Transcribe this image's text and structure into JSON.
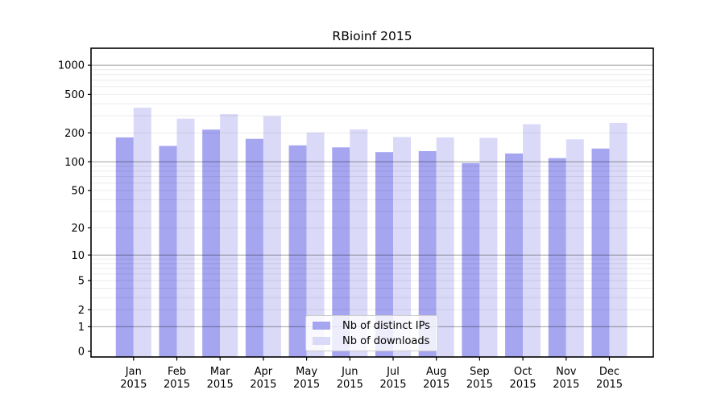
{
  "chart_data": {
    "type": "bar",
    "title": "RBioinf 2015",
    "categories": [
      "Jan 2015",
      "Feb 2015",
      "Mar 2015",
      "Apr 2015",
      "May 2015",
      "Jun 2015",
      "Jul 2015",
      "Aug 2015",
      "Sep 2015",
      "Oct 2015",
      "Nov 2015",
      "Dec 2015"
    ],
    "series": [
      {
        "name": "Nb of distinct IPs",
        "color": "#a5a5f0",
        "values": [
          179,
          146,
          216,
          173,
          148,
          141,
          126,
          129,
          97,
          122,
          109,
          137
        ]
      },
      {
        "name": "Nb of downloads",
        "color": "#dadaf8",
        "values": [
          364,
          280,
          312,
          298,
          201,
          217,
          181,
          179,
          177,
          246,
          171,
          253
        ]
      }
    ],
    "y_ticks": [
      0,
      1,
      2,
      5,
      10,
      20,
      50,
      100,
      200,
      500,
      1000
    ],
    "y_scale": "log1p",
    "ylim": [
      0,
      1500
    ],
    "xlabel": "",
    "ylabel": "",
    "grid": "decade-major + log-minor, drawn over bars",
    "legend_position": "lower-center",
    "colors": {
      "bar_ips": "#a5a5f0",
      "bar_downloads": "#dadaf8",
      "grid_decade": "rgba(0,0,0,0.38)",
      "grid_minor": "rgba(0,0,0,0.08)",
      "frame": "#000000",
      "text": "#000000",
      "legend_border": "#cccccc"
    }
  }
}
